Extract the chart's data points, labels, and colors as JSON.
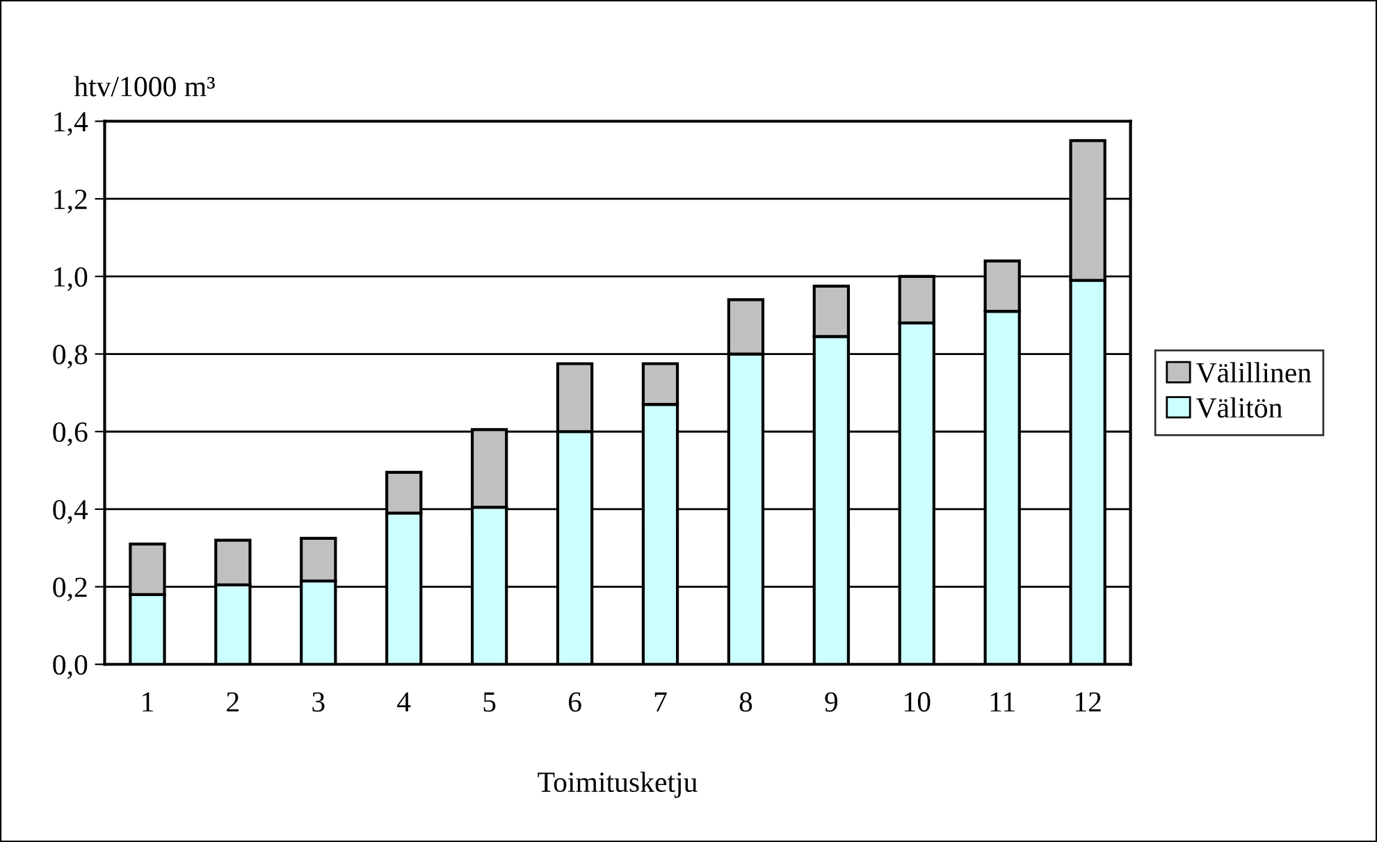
{
  "chart_data": {
    "type": "bar",
    "stacked": true,
    "xlabel": "Toimitusketju",
    "ylabel": "htv/1000 m³",
    "categories": [
      "1",
      "2",
      "3",
      "4",
      "5",
      "6",
      "7",
      "8",
      "9",
      "10",
      "11",
      "12"
    ],
    "series": [
      {
        "name": "Välitön",
        "color": "#ccffff",
        "values": [
          0.18,
          0.205,
          0.215,
          0.39,
          0.405,
          0.6,
          0.67,
          0.8,
          0.845,
          0.88,
          0.91,
          0.99
        ]
      },
      {
        "name": "Välillinen",
        "color": "#c0c0c0",
        "values": [
          0.13,
          0.115,
          0.11,
          0.105,
          0.2,
          0.175,
          0.105,
          0.14,
          0.13,
          0.12,
          0.13,
          0.36
        ]
      }
    ],
    "ylim": [
      0,
      1.4
    ],
    "yticks": [
      {
        "value": 0,
        "label": "0,0"
      },
      {
        "value": 0.2,
        "label": "0,2"
      },
      {
        "value": 0.4,
        "label": "0,4"
      },
      {
        "value": 0.6,
        "label": "0,6"
      },
      {
        "value": 0.8,
        "label": "0,8"
      },
      {
        "value": 1.0,
        "label": "1,0"
      },
      {
        "value": 1.2,
        "label": "1,2"
      },
      {
        "value": 1.4,
        "label": "1,4"
      }
    ],
    "grid": "y",
    "legend": "right"
  }
}
